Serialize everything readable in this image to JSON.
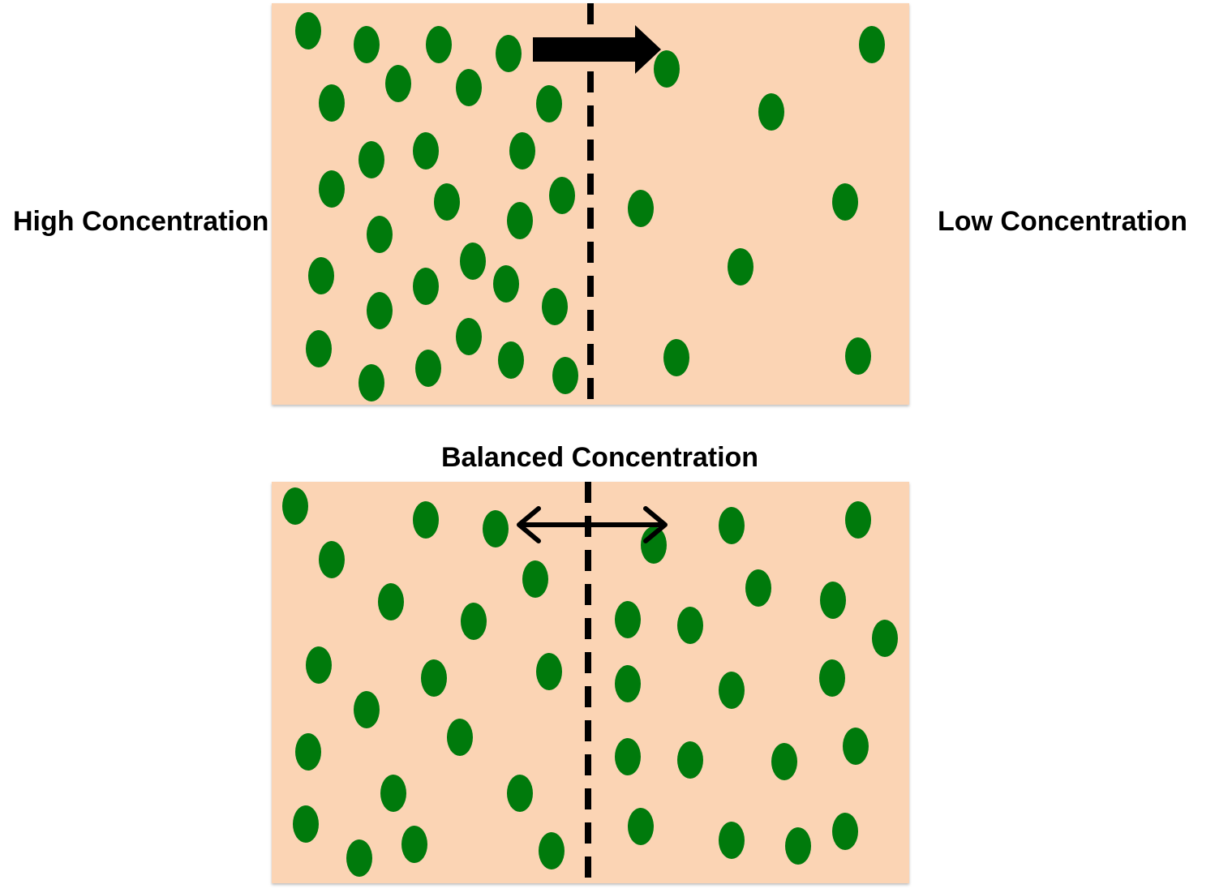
{
  "labels": {
    "high": "High Concentration",
    "low": "Low Concentration",
    "balanced": "Balanced Concentration"
  },
  "colors": {
    "panel_fill": "#FBD4B4",
    "particle": "#007A0C",
    "divider": "#000000",
    "arrow": "#000000"
  },
  "panels": [
    {
      "name": "unbalanced",
      "arrow": "one-way-right"
    },
    {
      "name": "balanced",
      "arrow": "two-way"
    }
  ]
}
